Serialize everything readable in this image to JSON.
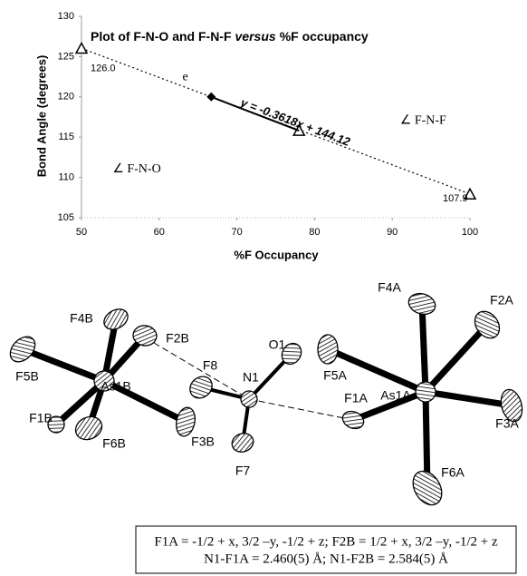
{
  "chart_data": {
    "type": "line",
    "title": [
      "Plot of F-N-O and F-N-F",
      "versus",
      "%F occupancy"
    ],
    "x_label": "%F Occupancy",
    "y_label": "Bond Angle (degrees)",
    "xlim": [
      50,
      100
    ],
    "xticks": [
      50,
      60,
      70,
      80,
      90,
      100
    ],
    "ylim": [
      105,
      130
    ],
    "yticks": [
      105,
      110,
      115,
      120,
      125,
      130
    ],
    "series": [
      {
        "color": "#000000",
        "style": "dotted",
        "marker": "none",
        "x": [
          50,
          100
        ],
        "values": [
          126.03,
          107.94
        ]
      },
      {
        "color": "#000000",
        "style": "none",
        "marker": "triangle",
        "x": [
          50,
          78,
          100
        ],
        "values": [
          126.0,
          115.8,
          107.9
        ],
        "value_labels": [
          "126.0",
          null,
          "107.9"
        ]
      },
      {
        "color": "#000000",
        "style": "solid",
        "marker": "none",
        "x": [
          66.7,
          78
        ],
        "values": [
          120,
          115.8
        ]
      },
      {
        "color": "#000000",
        "style": "none",
        "marker": "diamond",
        "x": [
          66.7
        ],
        "values": [
          120
        ]
      }
    ],
    "annotations": [
      "e",
      "∠ F-N-F",
      "∠ F-N-O",
      "y = -0.3618x + 144.12"
    ]
  },
  "diagram": {
    "atoms": [
      "F4B",
      "F2B",
      "F5B",
      "As1B",
      "F1B",
      "F6B",
      "F3B",
      "F8",
      "N1",
      "O1",
      "F7",
      "F4A",
      "F2A",
      "F5A",
      "As1A",
      "F3A",
      "F1A",
      "F6A"
    ]
  },
  "caption": {
    "lines": [
      "F1A = -1/2 + x, 3/2 –y, -1/2 + z; F2B = 1/2 + x, 3/2 –y, -1/2 + z",
      "N1-F1A = 2.460(5) Å; N1-F2B = 2.584(5) Å"
    ]
  }
}
